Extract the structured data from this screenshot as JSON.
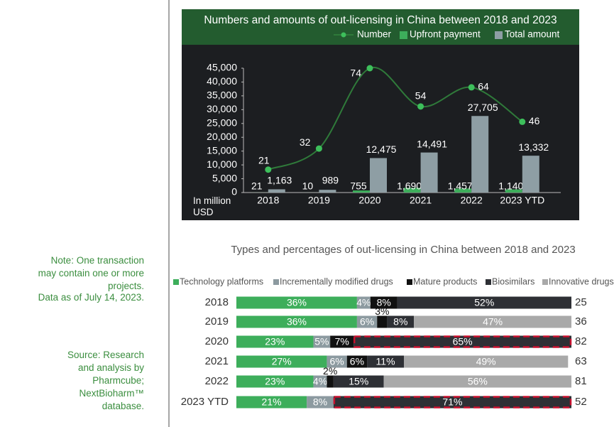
{
  "notes": [
    "Note: One transaction may contain one or more projects.",
    "Data as of July 14, 2023.",
    "Source: Research and analysis by Pharmcube; NextBioharm™ database."
  ],
  "chart_data": [
    {
      "type": "combo",
      "title": "Numbers and amounts of out-licensing in China between 2018 and 2023",
      "y_label": "In million USD",
      "categories": [
        "2018",
        "2019",
        "2020",
        "2021",
        "2022",
        "2023 YTD"
      ],
      "series": [
        {
          "name": "Number",
          "type": "line",
          "axis": "y2",
          "color": "#3dbf5b",
          "line_color": "#2f7a3a",
          "values": [
            21,
            32,
            74,
            54,
            64,
            46
          ]
        },
        {
          "name": "Upfront payment",
          "type": "bar",
          "color": "#3dae5b",
          "values": [
            21,
            10,
            755,
            1690,
            1457,
            1140
          ],
          "value_labels": [
            "21",
            "10",
            "755",
            "1,690",
            "1,457",
            "1,140"
          ]
        },
        {
          "name": "Total amount",
          "type": "bar",
          "color": "#8e9ea4",
          "values": [
            1163,
            989,
            12475,
            14491,
            27705,
            13332
          ],
          "value_labels": [
            "1,163",
            "989",
            "12,475",
            "14,491",
            "27,705",
            "13,332"
          ]
        }
      ],
      "ylim": [
        0,
        45000
      ],
      "yticks": [
        0,
        {
          "value": 5000,
          "label": "5,000"
        },
        {
          "value": 10000,
          "label": "10,000"
        },
        {
          "value": 15000,
          "label": "15,000"
        },
        {
          "value": 20000,
          "label": "20,000"
        },
        {
          "value": 25000,
          "label": "25,000"
        },
        {
          "value": 30000,
          "label": "30,000"
        },
        {
          "value": 35000,
          "label": "35,000"
        },
        {
          "value": 40000,
          "label": "40,000"
        },
        {
          "value": 45000,
          "label": "45,000"
        }
      ],
      "y2lim": [
        9,
        74
      ]
    },
    {
      "type": "stacked_bar_h",
      "title": "Types and percentages of out-licensing in China between 2018 and 2023",
      "categories": [
        "2018",
        "2019",
        "2020",
        "2021",
        "2022",
        "2023 YTD"
      ],
      "series": [
        {
          "name": "Technology platforms",
          "color": "#3dae5b",
          "values": [
            36,
            36,
            23,
            27,
            23,
            21
          ],
          "value_labels": [
            "36%",
            "36%",
            "23%",
            "27%",
            "23%",
            "21%"
          ]
        },
        {
          "name": "Incrementally modified drugs",
          "color": "#8c9aa0",
          "values": [
            4,
            6,
            5,
            6,
            4,
            8
          ],
          "value_labels": [
            "4%",
            "6%",
            "5%",
            "6%",
            "4%",
            "8%"
          ]
        },
        {
          "name": "Mature products",
          "color": "#111111",
          "values": [
            8,
            3,
            7,
            6,
            2,
            null
          ],
          "value_labels": [
            "8%",
            "3%",
            "7%",
            "6%",
            "2%",
            null
          ]
        },
        {
          "name": "Biosimilars",
          "color": "#2e3035",
          "values": [
            52,
            8,
            65,
            11,
            15,
            71
          ],
          "value_labels": [
            "52%",
            "8%",
            "65%",
            "11%",
            "15%",
            "71%"
          ],
          "highlight": [
            2,
            5
          ]
        },
        {
          "name": "Innovative drugs",
          "color": "#a9a9a9",
          "values": [
            null,
            47,
            null,
            49,
            56,
            null
          ],
          "value_labels": [
            null,
            "47%",
            null,
            "49%",
            "56%",
            null
          ]
        }
      ],
      "counts": [
        25,
        36,
        82,
        63,
        81,
        52
      ],
      "xlim": [
        0,
        100
      ],
      "highlight_color": "#c8102e"
    }
  ]
}
